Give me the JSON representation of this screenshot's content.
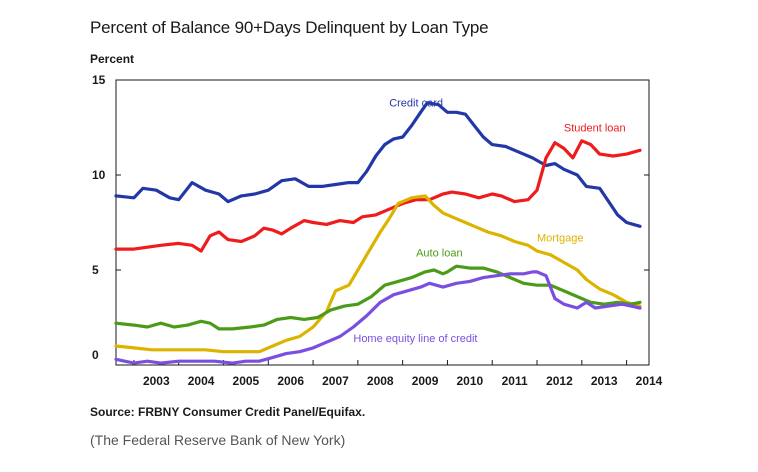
{
  "chart_data": {
    "type": "line",
    "title": "Percent of Balance 90+Days Delinquent by Loan Type",
    "ylabel": "Percent",
    "xlabel": "",
    "ylim": [
      0,
      15
    ],
    "xlim": [
      2002.6,
      2014.5
    ],
    "y_ticks": [
      "0",
      "5",
      "10",
      "15"
    ],
    "x_ticks": [
      "2003",
      "2004",
      "2005",
      "2006",
      "2007",
      "2008",
      "2009",
      "2010",
      "2011",
      "2012",
      "2013",
      "2014"
    ],
    "source": "Source: FRBNY Consumer Credit Panel/Equifax.",
    "series": [
      {
        "name": "Credit card",
        "label": "Credit card",
        "color": "#2338a8",
        "points": [
          [
            2002.6,
            8.9
          ],
          [
            2003.0,
            8.8
          ],
          [
            2003.2,
            9.3
          ],
          [
            2003.5,
            9.2
          ],
          [
            2003.8,
            8.8
          ],
          [
            2004.0,
            8.7
          ],
          [
            2004.3,
            9.6
          ],
          [
            2004.6,
            9.2
          ],
          [
            2004.9,
            9.0
          ],
          [
            2005.1,
            8.6
          ],
          [
            2005.4,
            8.9
          ],
          [
            2005.7,
            9.0
          ],
          [
            2006.0,
            9.2
          ],
          [
            2006.3,
            9.7
          ],
          [
            2006.6,
            9.8
          ],
          [
            2006.9,
            9.4
          ],
          [
            2007.2,
            9.4
          ],
          [
            2007.5,
            9.5
          ],
          [
            2007.8,
            9.6
          ],
          [
            2008.0,
            9.6
          ],
          [
            2008.2,
            10.2
          ],
          [
            2008.4,
            11.0
          ],
          [
            2008.6,
            11.6
          ],
          [
            2008.8,
            11.9
          ],
          [
            2009.0,
            12.0
          ],
          [
            2009.2,
            12.6
          ],
          [
            2009.4,
            13.3
          ],
          [
            2009.55,
            13.8
          ],
          [
            2009.8,
            13.7
          ],
          [
            2010.0,
            13.3
          ],
          [
            2010.2,
            13.3
          ],
          [
            2010.4,
            13.2
          ],
          [
            2010.6,
            12.6
          ],
          [
            2010.8,
            12.0
          ],
          [
            2011.0,
            11.6
          ],
          [
            2011.3,
            11.5
          ],
          [
            2011.6,
            11.2
          ],
          [
            2011.9,
            10.9
          ],
          [
            2012.2,
            10.5
          ],
          [
            2012.4,
            10.6
          ],
          [
            2012.6,
            10.3
          ],
          [
            2012.9,
            10.0
          ],
          [
            2013.1,
            9.4
          ],
          [
            2013.4,
            9.3
          ],
          [
            2013.6,
            8.6
          ],
          [
            2013.8,
            7.9
          ],
          [
            2014.0,
            7.5
          ],
          [
            2014.3,
            7.3
          ]
        ],
        "label_anchor": [
          2008.7,
          13.6
        ]
      },
      {
        "name": "Student loan",
        "label": "Student loan",
        "color": "#ee1c1c",
        "points": [
          [
            2002.6,
            6.1
          ],
          [
            2003.0,
            6.1
          ],
          [
            2003.3,
            6.2
          ],
          [
            2003.6,
            6.3
          ],
          [
            2004.0,
            6.4
          ],
          [
            2004.3,
            6.3
          ],
          [
            2004.5,
            6.0
          ],
          [
            2004.7,
            6.8
          ],
          [
            2004.9,
            7.0
          ],
          [
            2005.1,
            6.6
          ],
          [
            2005.4,
            6.5
          ],
          [
            2005.7,
            6.8
          ],
          [
            2005.9,
            7.2
          ],
          [
            2006.1,
            7.1
          ],
          [
            2006.3,
            6.9
          ],
          [
            2006.5,
            7.2
          ],
          [
            2006.8,
            7.6
          ],
          [
            2007.0,
            7.5
          ],
          [
            2007.3,
            7.4
          ],
          [
            2007.6,
            7.6
          ],
          [
            2007.9,
            7.5
          ],
          [
            2008.1,
            7.8
          ],
          [
            2008.4,
            7.9
          ],
          [
            2008.7,
            8.2
          ],
          [
            2009.0,
            8.5
          ],
          [
            2009.3,
            8.7
          ],
          [
            2009.6,
            8.7
          ],
          [
            2009.9,
            9.0
          ],
          [
            2010.1,
            9.1
          ],
          [
            2010.4,
            9.0
          ],
          [
            2010.7,
            8.8
          ],
          [
            2011.0,
            9.0
          ],
          [
            2011.2,
            8.9
          ],
          [
            2011.5,
            8.6
          ],
          [
            2011.8,
            8.7
          ],
          [
            2012.0,
            9.2
          ],
          [
            2012.2,
            10.9
          ],
          [
            2012.4,
            11.7
          ],
          [
            2012.6,
            11.4
          ],
          [
            2012.8,
            10.9
          ],
          [
            2013.0,
            11.8
          ],
          [
            2013.2,
            11.6
          ],
          [
            2013.4,
            11.1
          ],
          [
            2013.7,
            11.0
          ],
          [
            2014.0,
            11.1
          ],
          [
            2014.3,
            11.3
          ]
        ],
        "label_anchor": [
          2012.6,
          12.3
        ]
      },
      {
        "name": "Mortgage",
        "label": "Mortgage",
        "color": "#dcb400",
        "points": [
          [
            2002.6,
            1.0
          ],
          [
            2003.0,
            0.9
          ],
          [
            2003.4,
            0.8
          ],
          [
            2003.8,
            0.8
          ],
          [
            2004.2,
            0.8
          ],
          [
            2004.6,
            0.8
          ],
          [
            2005.0,
            0.7
          ],
          [
            2005.4,
            0.7
          ],
          [
            2005.8,
            0.7
          ],
          [
            2006.1,
            1.0
          ],
          [
            2006.4,
            1.3
          ],
          [
            2006.7,
            1.5
          ],
          [
            2007.0,
            2.0
          ],
          [
            2007.3,
            2.8
          ],
          [
            2007.5,
            3.9
          ],
          [
            2007.8,
            4.2
          ],
          [
            2008.0,
            5.0
          ],
          [
            2008.2,
            5.8
          ],
          [
            2008.5,
            7.0
          ],
          [
            2008.7,
            7.7
          ],
          [
            2008.9,
            8.5
          ],
          [
            2009.2,
            8.8
          ],
          [
            2009.5,
            8.9
          ],
          [
            2009.7,
            8.4
          ],
          [
            2009.9,
            8.0
          ],
          [
            2010.1,
            7.8
          ],
          [
            2010.4,
            7.5
          ],
          [
            2010.6,
            7.3
          ],
          [
            2010.9,
            7.0
          ],
          [
            2011.2,
            6.8
          ],
          [
            2011.5,
            6.5
          ],
          [
            2011.8,
            6.3
          ],
          [
            2012.0,
            6.0
          ],
          [
            2012.3,
            5.8
          ],
          [
            2012.6,
            5.4
          ],
          [
            2012.9,
            5.0
          ],
          [
            2013.1,
            4.5
          ],
          [
            2013.4,
            4.0
          ],
          [
            2013.7,
            3.7
          ],
          [
            2014.0,
            3.3
          ],
          [
            2014.3,
            3.1
          ]
        ],
        "label_anchor": [
          2012.0,
          6.5
        ]
      },
      {
        "name": "Auto loan",
        "label": "Auto loan",
        "color": "#4c9b18",
        "points": [
          [
            2002.6,
            2.2
          ],
          [
            2003.0,
            2.1
          ],
          [
            2003.3,
            2.0
          ],
          [
            2003.6,
            2.2
          ],
          [
            2003.9,
            2.0
          ],
          [
            2004.2,
            2.1
          ],
          [
            2004.5,
            2.3
          ],
          [
            2004.7,
            2.2
          ],
          [
            2004.9,
            1.9
          ],
          [
            2005.2,
            1.9
          ],
          [
            2005.6,
            2.0
          ],
          [
            2005.9,
            2.1
          ],
          [
            2006.2,
            2.4
          ],
          [
            2006.5,
            2.5
          ],
          [
            2006.8,
            2.4
          ],
          [
            2007.1,
            2.5
          ],
          [
            2007.4,
            2.9
          ],
          [
            2007.7,
            3.1
          ],
          [
            2008.0,
            3.2
          ],
          [
            2008.3,
            3.6
          ],
          [
            2008.6,
            4.2
          ],
          [
            2008.9,
            4.4
          ],
          [
            2009.2,
            4.6
          ],
          [
            2009.5,
            4.9
          ],
          [
            2009.7,
            5.0
          ],
          [
            2009.9,
            4.8
          ],
          [
            2010.0,
            4.9
          ],
          [
            2010.2,
            5.2
          ],
          [
            2010.5,
            5.1
          ],
          [
            2010.8,
            5.1
          ],
          [
            2011.1,
            4.9
          ],
          [
            2011.4,
            4.6
          ],
          [
            2011.7,
            4.3
          ],
          [
            2012.0,
            4.2
          ],
          [
            2012.3,
            4.2
          ],
          [
            2012.6,
            3.9
          ],
          [
            2012.9,
            3.6
          ],
          [
            2013.2,
            3.3
          ],
          [
            2013.5,
            3.2
          ],
          [
            2013.8,
            3.3
          ],
          [
            2014.1,
            3.2
          ],
          [
            2014.3,
            3.3
          ]
        ],
        "label_anchor": [
          2009.3,
          5.7
        ]
      },
      {
        "name": "Home equity line of credit",
        "label": "Home equity line of credit",
        "color": "#7a4fe0",
        "points": [
          [
            2002.6,
            0.3
          ],
          [
            2003.0,
            0.1
          ],
          [
            2003.3,
            0.2
          ],
          [
            2003.6,
            0.1
          ],
          [
            2004.0,
            0.2
          ],
          [
            2004.4,
            0.2
          ],
          [
            2004.8,
            0.2
          ],
          [
            2005.2,
            0.1
          ],
          [
            2005.5,
            0.2
          ],
          [
            2005.8,
            0.2
          ],
          [
            2006.1,
            0.4
          ],
          [
            2006.4,
            0.6
          ],
          [
            2006.7,
            0.7
          ],
          [
            2007.0,
            0.9
          ],
          [
            2007.3,
            1.2
          ],
          [
            2007.6,
            1.5
          ],
          [
            2007.9,
            2.0
          ],
          [
            2008.2,
            2.6
          ],
          [
            2008.5,
            3.3
          ],
          [
            2008.8,
            3.7
          ],
          [
            2009.1,
            3.9
          ],
          [
            2009.4,
            4.1
          ],
          [
            2009.6,
            4.3
          ],
          [
            2009.9,
            4.1
          ],
          [
            2010.2,
            4.3
          ],
          [
            2010.5,
            4.4
          ],
          [
            2010.8,
            4.6
          ],
          [
            2011.1,
            4.7
          ],
          [
            2011.4,
            4.8
          ],
          [
            2011.7,
            4.8
          ],
          [
            2011.9,
            4.9
          ],
          [
            2012.0,
            4.9
          ],
          [
            2012.2,
            4.7
          ],
          [
            2012.4,
            3.5
          ],
          [
            2012.6,
            3.2
          ],
          [
            2012.9,
            3.0
          ],
          [
            2013.1,
            3.3
          ],
          [
            2013.3,
            3.0
          ],
          [
            2013.6,
            3.1
          ],
          [
            2013.9,
            3.2
          ],
          [
            2014.1,
            3.1
          ],
          [
            2014.3,
            3.0
          ]
        ],
        "label_anchor": [
          2007.9,
          1.2
        ]
      }
    ]
  },
  "caption": "(The Federal Reserve Bank of New York)"
}
